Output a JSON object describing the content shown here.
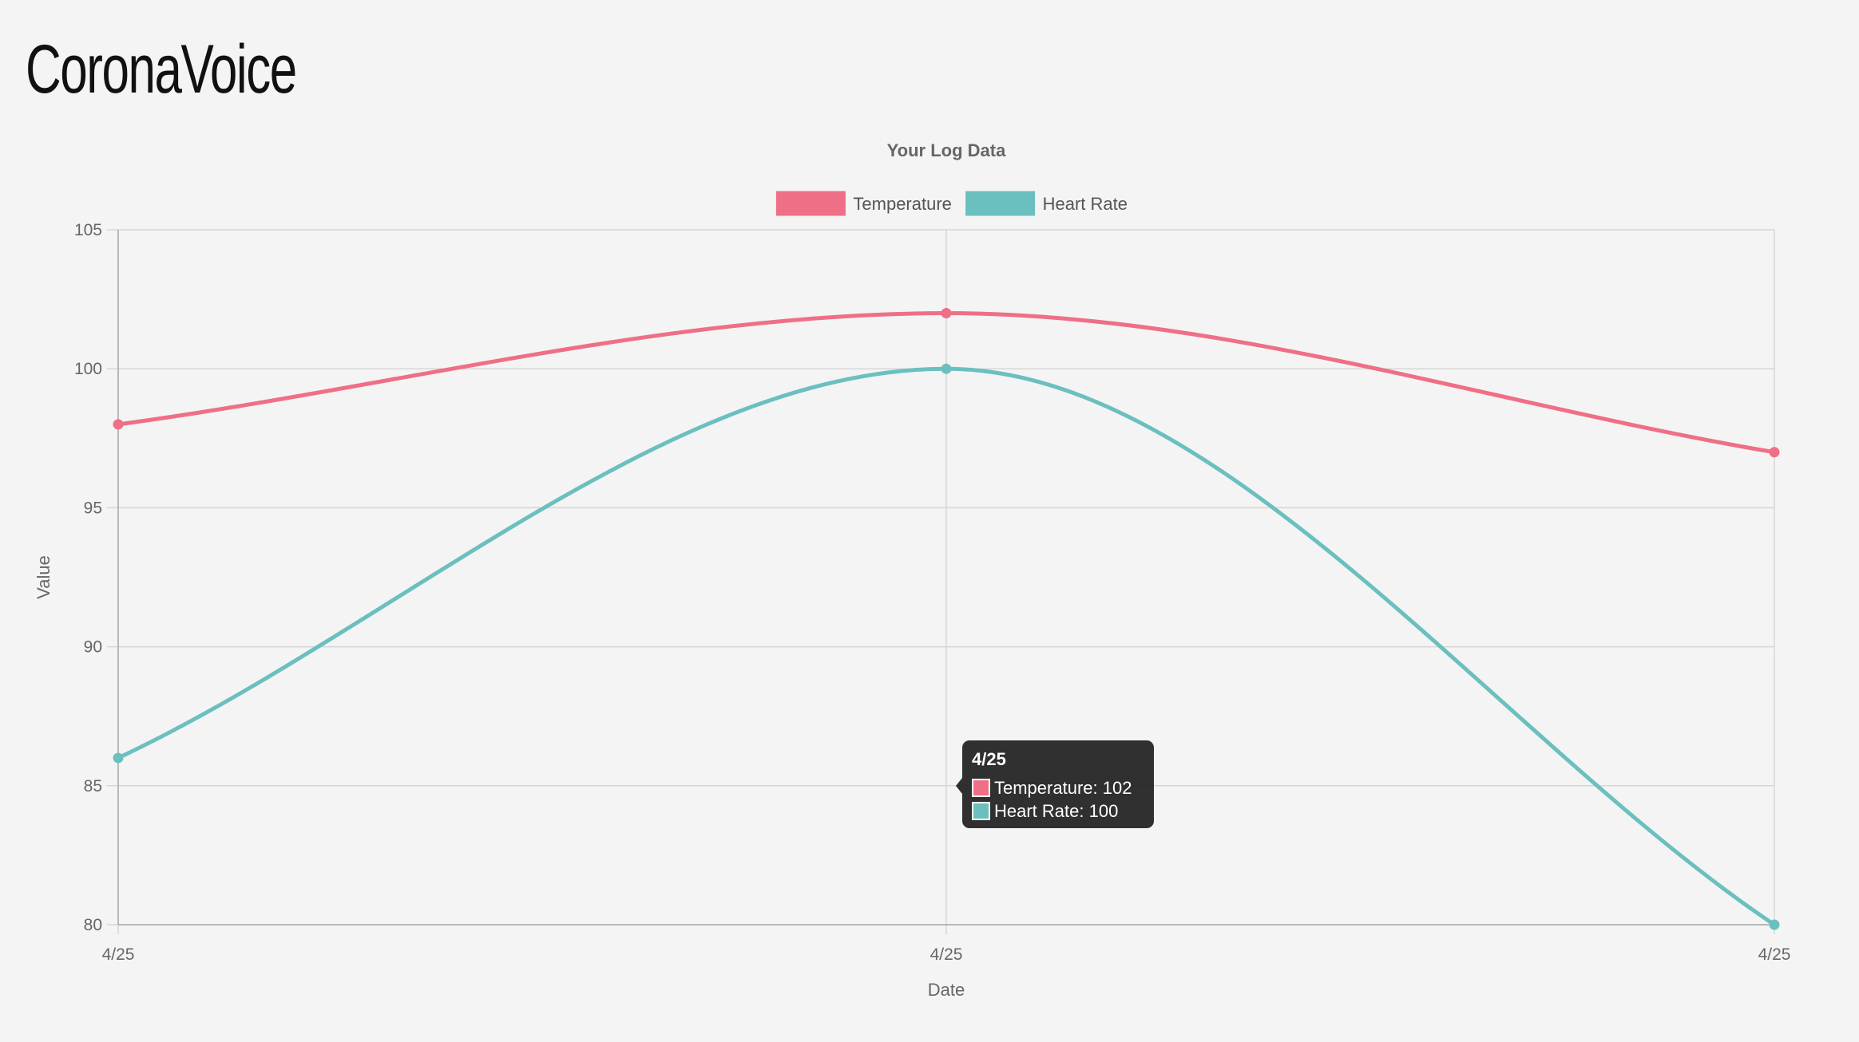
{
  "app": {
    "title": "CoronaVoice"
  },
  "chart_data": {
    "type": "line",
    "title": "Your Log Data",
    "xlabel": "Date",
    "ylabel": "Value",
    "categories": [
      "4/25",
      "4/25",
      "4/25"
    ],
    "ylim": [
      80,
      105
    ],
    "yticks": [
      80,
      85,
      90,
      95,
      100,
      105
    ],
    "grid": true,
    "legend_position": "top-center",
    "series": [
      {
        "name": "Temperature",
        "values": [
          98,
          102,
          97
        ],
        "color": "#ef6f86"
      },
      {
        "name": "Heart Rate",
        "values": [
          86,
          100,
          80
        ],
        "color": "#6cbfbf"
      }
    ],
    "tooltip": {
      "category_index": 1,
      "title": "4/25",
      "lines": [
        "Temperature: 102",
        "Heart Rate: 100"
      ]
    }
  }
}
